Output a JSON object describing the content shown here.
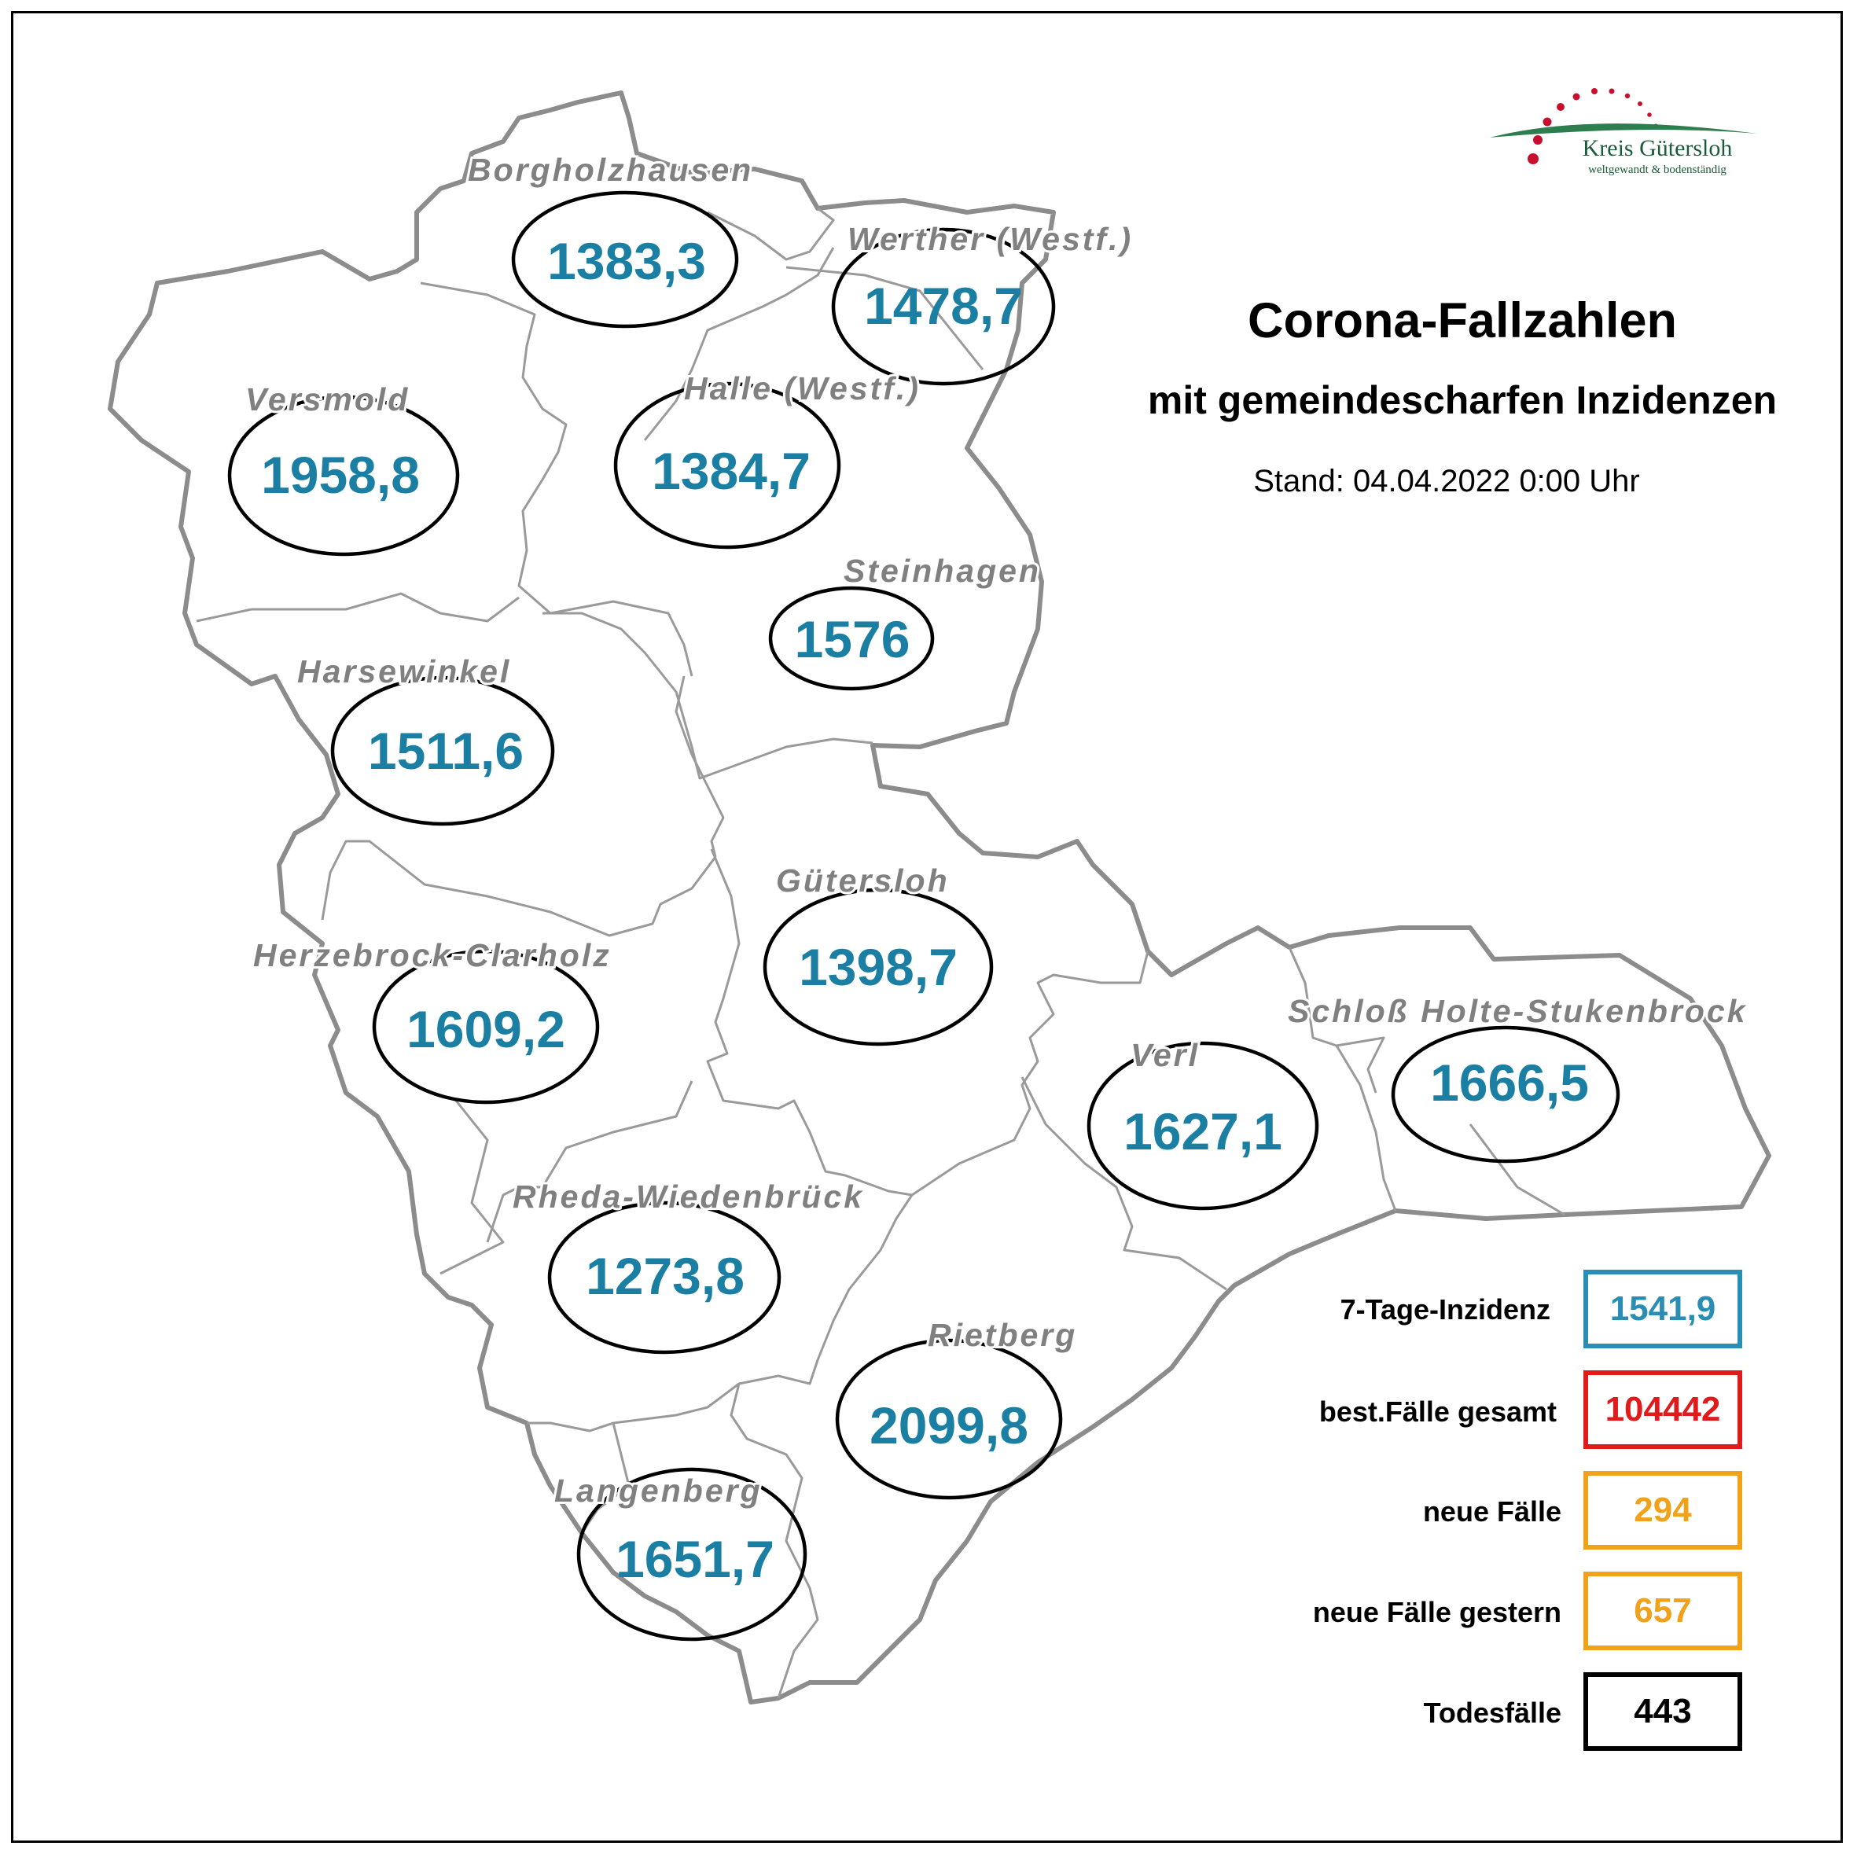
{
  "title": "Corona-Fallzahlen",
  "subtitle": "mit gemeindescharfen Inzidenzen",
  "stand": "Stand: 04.04.2022 0:00 Uhr",
  "logo": {
    "name": "Kreis Gütersloh",
    "tagline": "weltgewandt & bodenständig",
    "colors": {
      "red": "#c8102e",
      "green": "#2e7d4f"
    }
  },
  "municipalities": [
    {
      "name": "Borgholzhausen",
      "value": "1383,3"
    },
    {
      "name": "Werther (Westf.)",
      "value": "1478,7"
    },
    {
      "name": "Versmold",
      "value": "1958,8"
    },
    {
      "name": "Halle (Westf.)",
      "value": "1384,7"
    },
    {
      "name": "Steinhagen",
      "value": "1576"
    },
    {
      "name": "Harsewinkel",
      "value": "1511,6"
    },
    {
      "name": "Gütersloh",
      "value": "1398,7"
    },
    {
      "name": "Herzebrock-Clarholz",
      "value": "1609,2"
    },
    {
      "name": "Verl",
      "value": "1627,1"
    },
    {
      "name": "Schloß Holte-Stukenbrock",
      "value": "1666,5"
    },
    {
      "name": "Rheda-Wiedenbrück",
      "value": "1273,8"
    },
    {
      "name": "Rietberg",
      "value": "2099,8"
    },
    {
      "name": "Langenberg",
      "value": "1651,7"
    }
  ],
  "stats": [
    {
      "label": "7-Tage-Inzidenz",
      "value": "1541,9",
      "color": "#2a8db3"
    },
    {
      "label": "best.Fälle gesamt",
      "value": "104442",
      "color": "#e01b1b"
    },
    {
      "label": "neue Fälle",
      "value": "294",
      "color": "#f0a21a"
    },
    {
      "label": "neue Fälle gestern",
      "value": "657",
      "color": "#f0a21a"
    },
    {
      "label": "Todesfälle",
      "value": "443",
      "color": "#000000"
    }
  ],
  "colors": {
    "value_text": "#1a7fa3",
    "name_text": "#808080",
    "border": "#8c8c8c"
  }
}
